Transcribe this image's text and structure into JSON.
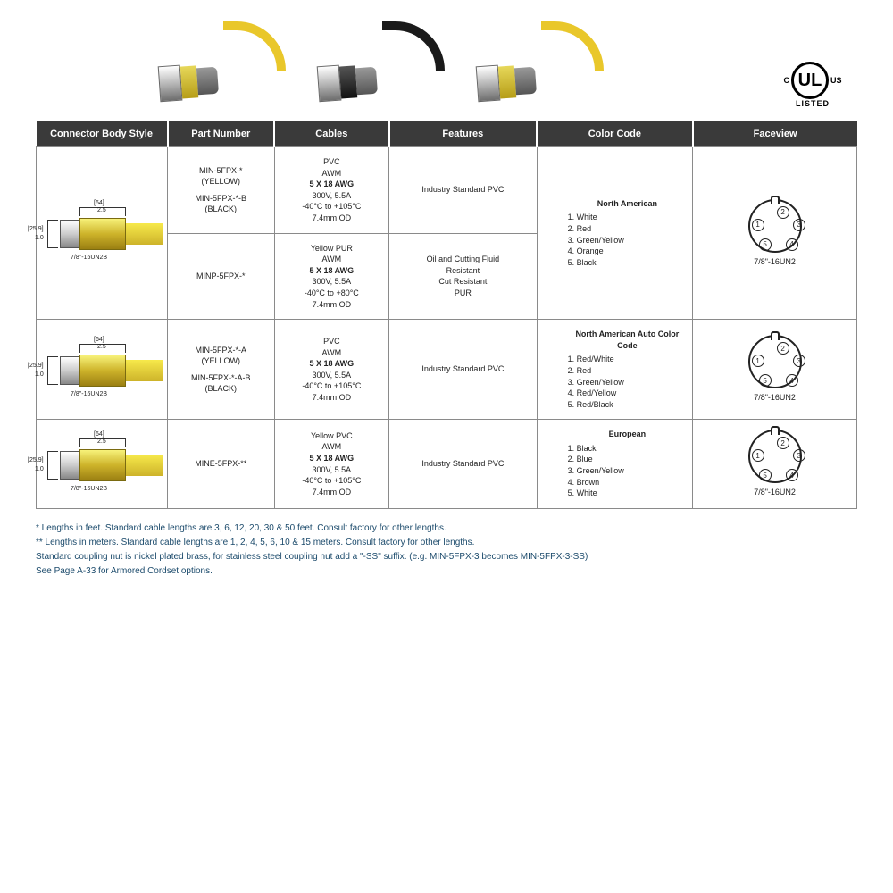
{
  "ul_badge": {
    "left": "C",
    "mid": "UL",
    "right": "US",
    "bottom": "LISTED"
  },
  "table": {
    "headers": [
      "Connector Body Style",
      "Part Number",
      "Cables",
      "Features",
      "Color Code",
      "Faceview"
    ],
    "col_widths": [
      "16%",
      "13%",
      "14%",
      "18%",
      "19%",
      "20%"
    ],
    "header_bg": "#3a3a3a",
    "header_fg": "#ffffff",
    "border_color": "#8a8a8a"
  },
  "rows": [
    {
      "body": {
        "dim_top": "[64]",
        "dim_top2": "2.5",
        "dim_left": "[25.9]",
        "dim_left2": "1.0",
        "thread": "7/8\"-16UN2B"
      },
      "part": [
        "MIN-5FPX-*",
        "(YELLOW)",
        "",
        "MIN-5FPX-*-B",
        "(BLACK)"
      ],
      "cable": [
        "PVC",
        "AWM",
        "5 X 18 AWG",
        "300V, 5.5A",
        "-40°C to +105°C",
        "7.4mm OD"
      ],
      "features": [
        "Industry Standard PVC"
      ],
      "colorcode": {
        "hdr": "North American",
        "items": [
          "1. White",
          "2. Red",
          "3. Green/Yellow",
          "4. Orange",
          "5. Black"
        ]
      },
      "face": {
        "label": "7/8\"-16UN2",
        "pins": [
          [
            30,
            6,
            "2"
          ],
          [
            48,
            20,
            "3"
          ],
          [
            40,
            42,
            "4"
          ],
          [
            10,
            42,
            "5"
          ],
          [
            2,
            20,
            "1"
          ]
        ]
      }
    },
    {
      "part": [
        "MINP-5FPX-*"
      ],
      "cable": [
        "Yellow PUR",
        "AWM",
        "5 X 18 AWG",
        "300V, 5.5A",
        "-40°C to +80°C",
        "7.4mm OD"
      ],
      "features": [
        "Oil and Cutting Fluid",
        "Resistant",
        "Cut Resistant",
        "PUR"
      ]
    },
    {
      "body": {
        "dim_top": "[64]",
        "dim_top2": "2.5",
        "dim_left": "[25.9]",
        "dim_left2": "1.0",
        "thread": "7/8\"-16UN2B"
      },
      "part": [
        "MIN-5FPX-*-A",
        "(YELLOW)",
        "",
        "MIN-5FPX-*-A-B",
        "(BLACK)"
      ],
      "cable": [
        "PVC",
        "AWM",
        "5 X 18 AWG",
        "300V, 5.5A",
        "-40°C to +105°C",
        "7.4mm OD"
      ],
      "features": [
        "Industry Standard PVC"
      ],
      "colorcode": {
        "hdr": "North American Auto Color Code",
        "items": [
          "1. Red/White",
          "2. Red",
          "3. Green/Yellow",
          "4. Red/Yellow",
          "5. Red/Black"
        ]
      },
      "face": {
        "label": "7/8\"-16UN2",
        "pins": [
          [
            30,
            6,
            "2"
          ],
          [
            48,
            20,
            "3"
          ],
          [
            40,
            42,
            "4"
          ],
          [
            10,
            42,
            "5"
          ],
          [
            2,
            20,
            "1"
          ]
        ]
      }
    },
    {
      "body": {
        "dim_top": "[64]",
        "dim_top2": "2.5",
        "dim_left": "[25.9]",
        "dim_left2": "1.0",
        "thread": "7/8\"-16UN2B"
      },
      "part": [
        "MINE-5FPX-**"
      ],
      "cable": [
        "Yellow PVC",
        "AWM",
        "5 X 18 AWG",
        "300V, 5.5A",
        "-40°C to +105°C",
        "7.4mm OD"
      ],
      "features": [
        "Industry Standard PVC"
      ],
      "colorcode": {
        "hdr": "European",
        "items": [
          "1. Black",
          "2. Blue",
          "3. Green/Yellow",
          "4. Brown",
          "5. White"
        ]
      },
      "face": {
        "label": "7/8\"-16UN2",
        "pins": [
          [
            30,
            6,
            "2"
          ],
          [
            48,
            20,
            "3"
          ],
          [
            40,
            42,
            "4"
          ],
          [
            10,
            42,
            "5"
          ],
          [
            2,
            20,
            "1"
          ]
        ]
      }
    }
  ],
  "notes": [
    "* Lengths in feet. Standard cable lengths are 3, 6, 12, 20, 30 & 50 feet. Consult factory for other lengths.",
    "** Lengths in meters.  Standard cable lengths are 1, 2, 4, 5, 6, 10 & 15 meters. Consult factory for other lengths.",
    "Standard coupling nut is nickel plated brass, for stainless steel coupling nut add a \"-SS\" suffix. (e.g. MIN-5FPX-3 becomes MIN-5FPX-3-SS)",
    "See Page A-33 for Armored Cordset options."
  ],
  "photo_colors": {
    "yellow": "#e9c72a",
    "black": "#1a1a1a"
  }
}
